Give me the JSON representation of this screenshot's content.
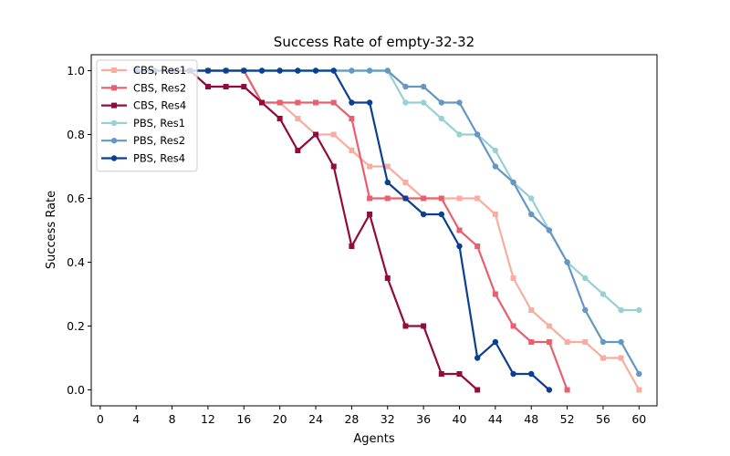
{
  "chart_data": {
    "type": "line",
    "title": "Success Rate of empty-32-32",
    "xlabel": "Agents",
    "ylabel": "Success Rate",
    "xlim": [
      -1,
      62
    ],
    "ylim": [
      -0.05,
      1.05
    ],
    "xticks": [
      0,
      4,
      8,
      12,
      16,
      20,
      24,
      28,
      32,
      36,
      40,
      44,
      48,
      52,
      56,
      60
    ],
    "yticks": [
      0.0,
      0.2,
      0.4,
      0.6,
      0.8,
      1.0
    ],
    "ytick_labels": [
      "0.0",
      "0.2",
      "0.4",
      "0.6",
      "0.8",
      "1.0"
    ],
    "grid": false,
    "legend_position": "top-left",
    "series": [
      {
        "name": "CBS, Res1",
        "color": "#f9ada0",
        "marker": "square",
        "x": [
          4,
          6,
          8,
          10,
          12,
          14,
          16,
          18,
          20,
          22,
          24,
          26,
          28,
          30,
          32,
          34,
          36,
          38,
          40,
          42,
          44,
          46,
          48,
          50,
          52,
          54,
          56,
          58,
          60
        ],
        "y": [
          1.0,
          1.0,
          1.0,
          1.0,
          1.0,
          1.0,
          1.0,
          0.9,
          0.9,
          0.85,
          0.8,
          0.8,
          0.75,
          0.7,
          0.7,
          0.65,
          0.6,
          0.6,
          0.6,
          0.6,
          0.55,
          0.35,
          0.25,
          0.2,
          0.15,
          0.15,
          0.1,
          0.1,
          0.0
        ]
      },
      {
        "name": "CBS, Res2",
        "color": "#e7606d",
        "marker": "square",
        "x": [
          4,
          6,
          8,
          10,
          12,
          14,
          16,
          18,
          20,
          22,
          24,
          26,
          28,
          30,
          32,
          34,
          36,
          38,
          40,
          42,
          44,
          46,
          48,
          50,
          52
        ],
        "y": [
          1.0,
          1.0,
          1.0,
          1.0,
          1.0,
          1.0,
          1.0,
          0.9,
          0.9,
          0.9,
          0.9,
          0.9,
          0.85,
          0.6,
          0.6,
          0.6,
          0.6,
          0.6,
          0.5,
          0.45,
          0.3,
          0.2,
          0.15,
          0.15,
          0.0
        ]
      },
      {
        "name": "CBS, Res4",
        "color": "#930a3c",
        "marker": "square",
        "x": [
          4,
          6,
          8,
          10,
          12,
          14,
          16,
          18,
          20,
          22,
          24,
          26,
          28,
          30,
          32,
          34,
          36,
          38,
          40,
          42
        ],
        "y": [
          1.0,
          1.0,
          1.0,
          1.0,
          0.95,
          0.95,
          0.95,
          0.9,
          0.85,
          0.75,
          0.8,
          0.7,
          0.45,
          0.55,
          0.35,
          0.2,
          0.2,
          0.05,
          0.05,
          0.0
        ]
      },
      {
        "name": "PBS, Res1",
        "color": "#98d0d6",
        "marker": "circle",
        "x": [
          4,
          6,
          8,
          10,
          12,
          14,
          16,
          18,
          20,
          22,
          24,
          26,
          28,
          30,
          32,
          34,
          36,
          38,
          40,
          42,
          44,
          46,
          48,
          50,
          52,
          54,
          56,
          58,
          60
        ],
        "y": [
          1.0,
          1.0,
          1.0,
          1.0,
          1.0,
          1.0,
          1.0,
          1.0,
          1.0,
          1.0,
          1.0,
          1.0,
          1.0,
          1.0,
          1.0,
          0.9,
          0.9,
          0.85,
          0.8,
          0.8,
          0.75,
          0.65,
          0.6,
          0.5,
          0.4,
          0.35,
          0.3,
          0.25,
          0.25
        ]
      },
      {
        "name": "PBS, Res2",
        "color": "#6697c2",
        "marker": "circle",
        "x": [
          4,
          6,
          8,
          10,
          12,
          14,
          16,
          18,
          20,
          22,
          24,
          26,
          28,
          30,
          32,
          34,
          36,
          38,
          40,
          42,
          44,
          46,
          48,
          50,
          52,
          54,
          56,
          58,
          60
        ],
        "y": [
          1.0,
          1.0,
          1.0,
          1.0,
          1.0,
          1.0,
          1.0,
          1.0,
          1.0,
          1.0,
          1.0,
          1.0,
          1.0,
          1.0,
          1.0,
          0.95,
          0.95,
          0.9,
          0.9,
          0.8,
          0.7,
          0.65,
          0.55,
          0.5,
          0.4,
          0.25,
          0.15,
          0.15,
          0.05
        ]
      },
      {
        "name": "PBS, Res4",
        "color": "#0b3f92",
        "marker": "circle",
        "x": [
          4,
          6,
          8,
          10,
          12,
          14,
          16,
          18,
          20,
          22,
          24,
          26,
          28,
          30,
          32,
          34,
          36,
          38,
          40,
          42,
          44,
          46,
          48,
          50
        ],
        "y": [
          1.0,
          1.0,
          1.0,
          1.0,
          1.0,
          1.0,
          1.0,
          1.0,
          1.0,
          1.0,
          1.0,
          1.0,
          0.9,
          0.9,
          0.65,
          0.6,
          0.55,
          0.55,
          0.45,
          0.1,
          0.15,
          0.05,
          0.05,
          0.0
        ]
      }
    ]
  }
}
